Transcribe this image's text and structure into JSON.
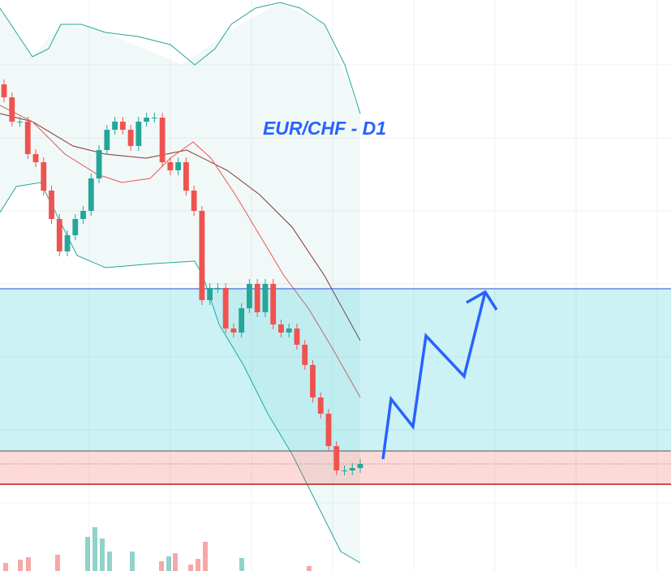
{
  "chart_data": {
    "type": "candlestick",
    "title": "EUR/CHF - D1",
    "ylim": [
      0,
      704
    ],
    "up_color": "#26a69a",
    "down_color": "#ef5350",
    "open": [
      600,
      584,
      554,
      554,
      514,
      504,
      469,
      434,
      394,
      414,
      434,
      444,
      484,
      519,
      544,
      554,
      544,
      524,
      554,
      559,
      559,
      504,
      494,
      504,
      469,
      444,
      334,
      349,
      349,
      299,
      294,
      324,
      354,
      319,
      354,
      304,
      294,
      299,
      279,
      254,
      214,
      194,
      154,
      124,
      124,
      127
    ],
    "high": [
      606,
      590,
      560,
      560,
      520,
      510,
      475,
      440,
      420,
      440,
      450,
      490,
      525,
      550,
      560,
      560,
      550,
      560,
      565,
      565,
      565,
      510,
      510,
      510,
      475,
      450,
      355,
      355,
      355,
      305,
      330,
      360,
      360,
      360,
      360,
      310,
      305,
      305,
      285,
      260,
      220,
      200,
      160,
      130,
      133,
      138
    ],
    "low": [
      578,
      548,
      548,
      508,
      498,
      463,
      428,
      388,
      388,
      408,
      428,
      438,
      478,
      513,
      538,
      538,
      518,
      518,
      548,
      553,
      498,
      488,
      488,
      463,
      438,
      328,
      328,
      343,
      293,
      288,
      288,
      318,
      313,
      313,
      298,
      288,
      288,
      273,
      248,
      208,
      188,
      148,
      118,
      118,
      118,
      121
    ],
    "close": [
      584,
      554,
      554,
      514,
      504,
      469,
      434,
      394,
      414,
      434,
      444,
      484,
      519,
      544,
      554,
      544,
      524,
      554,
      559,
      559,
      504,
      494,
      504,
      469,
      444,
      334,
      349,
      349,
      299,
      294,
      324,
      354,
      319,
      354,
      304,
      294,
      299,
      279,
      254,
      214,
      194,
      154,
      124,
      124,
      127,
      132
    ]
  }
}
